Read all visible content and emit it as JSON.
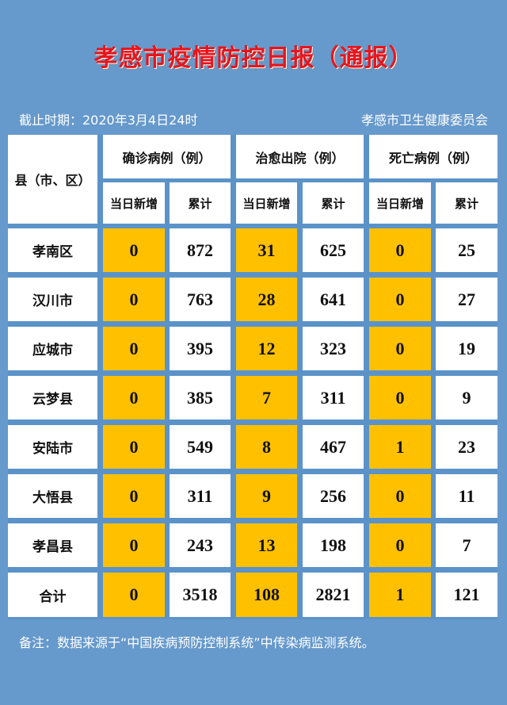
{
  "title": "孝感市疫情防控日报（通报）",
  "cutoff": "截止时期：2020年3月4日24时",
  "issuer": "孝感市卫生健康委员会",
  "table": {
    "region_header": "县（市、区）",
    "groups": [
      {
        "label": "确诊病例（例）",
        "sub": [
          "当日新增",
          "累计"
        ]
      },
      {
        "label": "治愈出院（例）",
        "sub": [
          "当日新增",
          "累计"
        ]
      },
      {
        "label": "死亡病例（例）",
        "sub": [
          "当日新增",
          "累计"
        ]
      }
    ],
    "rows": [
      {
        "name": "孝南区",
        "values": [
          "0",
          "872",
          "31",
          "625",
          "0",
          "25"
        ]
      },
      {
        "name": "汉川市",
        "values": [
          "0",
          "763",
          "28",
          "641",
          "0",
          "27"
        ]
      },
      {
        "name": "应城市",
        "values": [
          "0",
          "395",
          "12",
          "323",
          "0",
          "19"
        ]
      },
      {
        "name": "云梦县",
        "values": [
          "0",
          "385",
          "7",
          "311",
          "0",
          "9"
        ]
      },
      {
        "name": "安陆市",
        "values": [
          "0",
          "549",
          "8",
          "467",
          "1",
          "23"
        ]
      },
      {
        "name": "大悟县",
        "values": [
          "0",
          "311",
          "9",
          "256",
          "0",
          "11"
        ]
      },
      {
        "name": "孝昌县",
        "values": [
          "0",
          "243",
          "13",
          "198",
          "0",
          "7"
        ]
      },
      {
        "name": "合计",
        "values": [
          "0",
          "3518",
          "108",
          "2821",
          "1",
          "121"
        ]
      }
    ]
  },
  "note": "备注：数据来源于“中国疾病预防控制系统”中传染病监测系统。",
  "colors": {
    "background": "#6699cc",
    "grid": "#5b93c9",
    "highlight": "#ffc000",
    "title": "#e8141c"
  }
}
